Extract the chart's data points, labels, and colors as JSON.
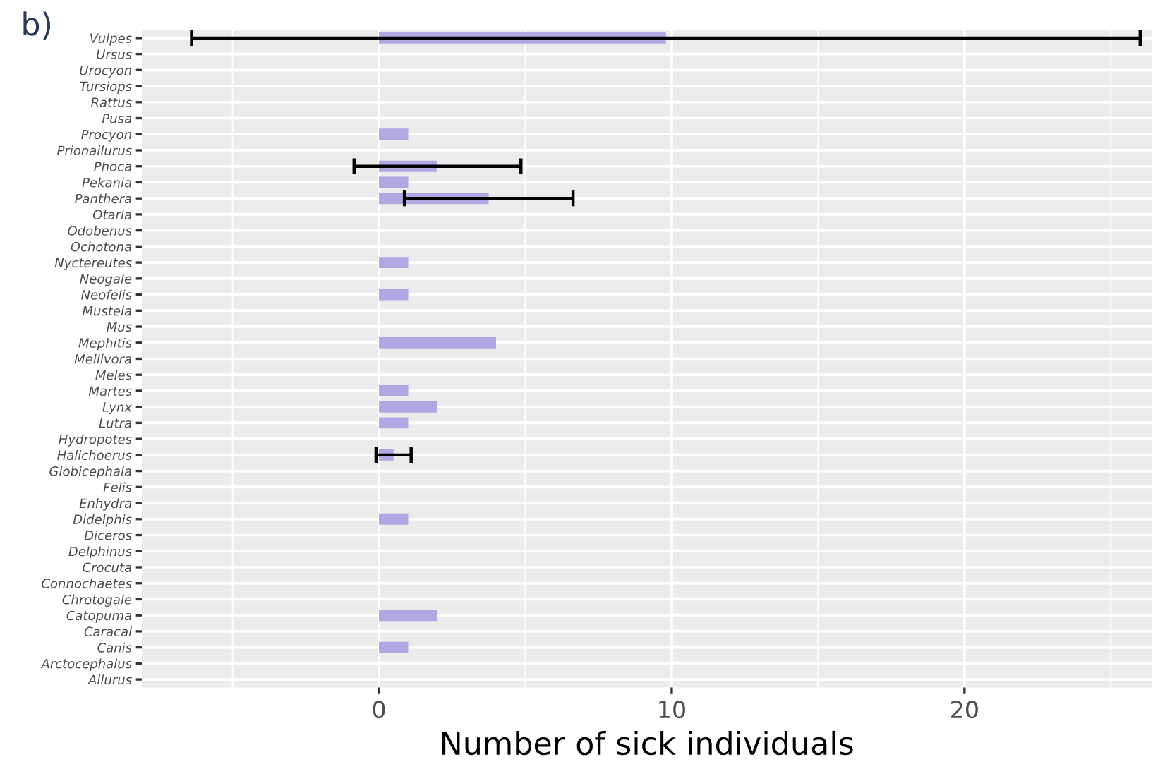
{
  "chart_data": {
    "type": "bar",
    "orientation": "horizontal",
    "categories": [
      "Vulpes",
      "Ursus",
      "Urocyon",
      "Tursiops",
      "Rattus",
      "Pusa",
      "Procyon",
      "Prionailurus",
      "Phoca",
      "Pekania",
      "Panthera",
      "Otaria",
      "Odobenus",
      "Ochotona",
      "Nyctereutes",
      "Neogale",
      "Neofelis",
      "Mustela",
      "Mus",
      "Mephitis",
      "Mellivora",
      "Meles",
      "Martes",
      "Lynx",
      "Lutra",
      "Hydropotes",
      "Halichoerus",
      "Globicephala",
      "Felis",
      "Enhydra",
      "Didelphis",
      "Diceros",
      "Delphinus",
      "Crocuta",
      "Connochaetes",
      "Chrotogale",
      "Catopuma",
      "Caracal",
      "Canis",
      "Arctocephalus",
      "Ailurus"
    ],
    "values": [
      9.8,
      0,
      0,
      0,
      0,
      0,
      1,
      0,
      2,
      1,
      3.75,
      0,
      0,
      0,
      1,
      0,
      1,
      0,
      0,
      4,
      0,
      0,
      1,
      2,
      1,
      0,
      0.5,
      0,
      0,
      0,
      1,
      0,
      0,
      0,
      0,
      0,
      2,
      0,
      1,
      0,
      0
    ],
    "errors": [
      [
        -6.4,
        26.0
      ],
      null,
      null,
      null,
      null,
      null,
      null,
      null,
      [
        -0.85,
        4.85
      ],
      null,
      [
        0.87,
        6.63
      ],
      null,
      null,
      null,
      null,
      null,
      null,
      null,
      null,
      null,
      null,
      null,
      null,
      null,
      null,
      null,
      [
        -0.1,
        1.1
      ],
      null,
      null,
      null,
      null,
      null,
      null,
      null,
      null,
      null,
      null,
      null,
      null,
      null,
      null
    ],
    "color": "#b0a7e3",
    "xlabel": "Number of sick individuals",
    "xlim": [
      -8.1,
      26.4
    ],
    "xticks": [
      0,
      10,
      20
    ],
    "grid": true,
    "annotations": [
      "b)"
    ]
  }
}
